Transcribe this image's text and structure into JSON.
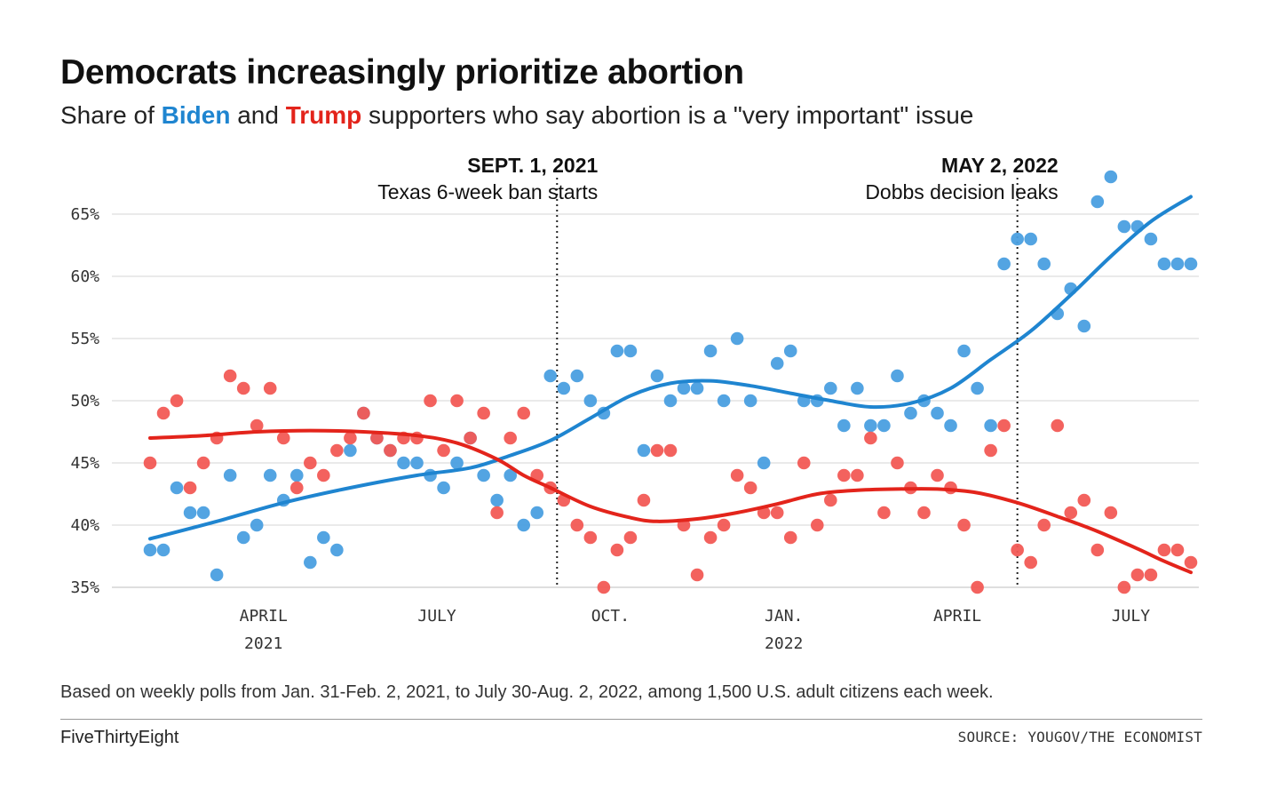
{
  "chart_data": {
    "type": "scatter",
    "title": "Democrats increasingly prioritize abortion",
    "subtitle_prefix": "Share of ",
    "subtitle_biden": "Biden",
    "subtitle_and": " and ",
    "subtitle_trump": "Trump",
    "subtitle_suffix": " supporters who say abortion is a \"very important\" issue",
    "xlabel": "",
    "ylabel": "",
    "ylim": [
      35,
      66
    ],
    "x_unit": "week index (weekly polls, week 0 = Jan. 31-Feb. 2, 2021)",
    "xlim": [
      0,
      78
    ],
    "y_ticks": [
      {
        "value": 35,
        "label": "35%"
      },
      {
        "value": 40,
        "label": "40%"
      },
      {
        "value": 45,
        "label": "45%"
      },
      {
        "value": 50,
        "label": "50%"
      },
      {
        "value": 55,
        "label": "55%"
      },
      {
        "value": 60,
        "label": "60%"
      },
      {
        "value": 65,
        "label": "65%"
      }
    ],
    "x_ticks": [
      {
        "value": 8.5,
        "label": "APRIL",
        "sublabel": "2021"
      },
      {
        "value": 21.5,
        "label": "JULY",
        "sublabel": ""
      },
      {
        "value": 34.5,
        "label": "OCT.",
        "sublabel": ""
      },
      {
        "value": 47.5,
        "label": "JAN.",
        "sublabel": "2022"
      },
      {
        "value": 60.5,
        "label": "APRIL",
        "sublabel": ""
      },
      {
        "value": 73.5,
        "label": "JULY",
        "sublabel": ""
      }
    ],
    "annotations": [
      {
        "x": 30.5,
        "title": "SEPT. 1, 2021",
        "text": "Texas 6-week ban starts"
      },
      {
        "x": 65,
        "title": "MAY 2, 2022",
        "text": "Dobbs decision leaks"
      }
    ],
    "series": [
      {
        "name": "Biden",
        "color": "#1f85d0",
        "dot_color": "#4a9fe0",
        "x": [
          0,
          1,
          2,
          3,
          4,
          5,
          6,
          7,
          8,
          9,
          10,
          11,
          12,
          13,
          14,
          15,
          16,
          17,
          18,
          19,
          20,
          21,
          22,
          23,
          24,
          25,
          26,
          27,
          28,
          29,
          30,
          31,
          32,
          33,
          34,
          35,
          36,
          37,
          38,
          39,
          40,
          41,
          42,
          43,
          44,
          45,
          46,
          47,
          48,
          49,
          50,
          51,
          52,
          53,
          54,
          55,
          56,
          57,
          58,
          59,
          60,
          61,
          62,
          63,
          64,
          65,
          66,
          67,
          68,
          69,
          70,
          71,
          72,
          73,
          74,
          75,
          76,
          77,
          78
        ],
        "values": [
          38,
          38,
          43,
          41,
          41,
          36,
          44,
          39,
          40,
          44,
          42,
          44,
          37,
          39,
          38,
          46,
          49,
          47,
          46,
          45,
          45,
          44,
          43,
          45,
          47,
          44,
          42,
          44,
          40,
          41,
          52,
          51,
          52,
          50,
          49,
          54,
          54,
          46,
          52,
          50,
          51,
          51,
          54,
          50,
          55,
          50,
          45,
          53,
          54,
          50,
          50,
          51,
          48,
          51,
          48,
          48,
          52,
          49,
          50,
          49,
          48,
          54,
          51,
          48,
          61,
          63,
          63,
          61,
          57,
          59,
          56,
          66,
          68,
          64,
          64,
          63,
          61,
          61,
          61
        ],
        "trend": [
          [
            0,
            38.9
          ],
          [
            5,
            40.3
          ],
          [
            10,
            41.8
          ],
          [
            15,
            43.0
          ],
          [
            20,
            44.0
          ],
          [
            24,
            44.6
          ],
          [
            27,
            45.6
          ],
          [
            30,
            46.8
          ],
          [
            33,
            48.6
          ],
          [
            36,
            50.4
          ],
          [
            39,
            51.4
          ],
          [
            42,
            51.6
          ],
          [
            45,
            51.2
          ],
          [
            48,
            50.6
          ],
          [
            51,
            50.0
          ],
          [
            54,
            49.5
          ],
          [
            57,
            49.8
          ],
          [
            60,
            51.0
          ],
          [
            63,
            53.3
          ],
          [
            66,
            55.6
          ],
          [
            69,
            58.5
          ],
          [
            72,
            61.6
          ],
          [
            75,
            64.4
          ],
          [
            78,
            66.4
          ]
        ]
      },
      {
        "name": "Trump",
        "color": "#e3241b",
        "dot_color": "#f25a55",
        "x": [
          0,
          1,
          2,
          3,
          4,
          5,
          6,
          7,
          8,
          9,
          10,
          11,
          12,
          13,
          14,
          15,
          16,
          17,
          18,
          19,
          20,
          21,
          22,
          23,
          24,
          25,
          26,
          27,
          28,
          29,
          30,
          31,
          32,
          33,
          34,
          35,
          36,
          37,
          38,
          39,
          40,
          41,
          42,
          43,
          44,
          45,
          46,
          47,
          48,
          49,
          50,
          51,
          52,
          53,
          54,
          55,
          56,
          57,
          58,
          59,
          60,
          61,
          62,
          63,
          64,
          65,
          66,
          67,
          68,
          69,
          70,
          71,
          72,
          73,
          74,
          75,
          76,
          77,
          78
        ],
        "values": [
          45,
          49,
          50,
          43,
          45,
          47,
          52,
          51,
          48,
          51,
          47,
          43,
          45,
          44,
          46,
          47,
          49,
          47,
          46,
          47,
          47,
          50,
          46,
          50,
          47,
          49,
          41,
          47,
          49,
          44,
          43,
          42,
          40,
          39,
          35,
          38,
          39,
          42,
          46,
          46,
          40,
          36,
          39,
          40,
          44,
          43,
          41,
          41,
          39,
          45,
          40,
          42,
          44,
          44,
          47,
          41,
          45,
          43,
          41,
          44,
          43,
          40,
          35,
          46,
          48,
          38,
          37,
          40,
          48,
          41,
          42,
          38,
          41,
          35,
          36,
          36,
          38,
          38,
          37
        ],
        "trend": [
          [
            0,
            47.0
          ],
          [
            4,
            47.2
          ],
          [
            8,
            47.5
          ],
          [
            12,
            47.6
          ],
          [
            16,
            47.5
          ],
          [
            20,
            47.2
          ],
          [
            23,
            46.6
          ],
          [
            26,
            45.3
          ],
          [
            28,
            44.0
          ],
          [
            30,
            43.0
          ],
          [
            33,
            41.5
          ],
          [
            36,
            40.6
          ],
          [
            38,
            40.3
          ],
          [
            41,
            40.5
          ],
          [
            44,
            41.0
          ],
          [
            47,
            41.7
          ],
          [
            50,
            42.5
          ],
          [
            53,
            42.8
          ],
          [
            56,
            42.9
          ],
          [
            59,
            42.9
          ],
          [
            62,
            42.6
          ],
          [
            65,
            41.8
          ],
          [
            68,
            40.7
          ],
          [
            71,
            39.5
          ],
          [
            74,
            38.1
          ],
          [
            76,
            37.1
          ],
          [
            78,
            36.2
          ]
        ]
      }
    ]
  },
  "footnote": "Based on weekly polls from Jan. 31-Feb. 2, 2021, to July 30-Aug. 2, 2022, among 1,500 U.S. adult citizens each week.",
  "brand": "FiveThirtyEight",
  "source": "SOURCE: YOUGOV/THE ECONOMIST"
}
